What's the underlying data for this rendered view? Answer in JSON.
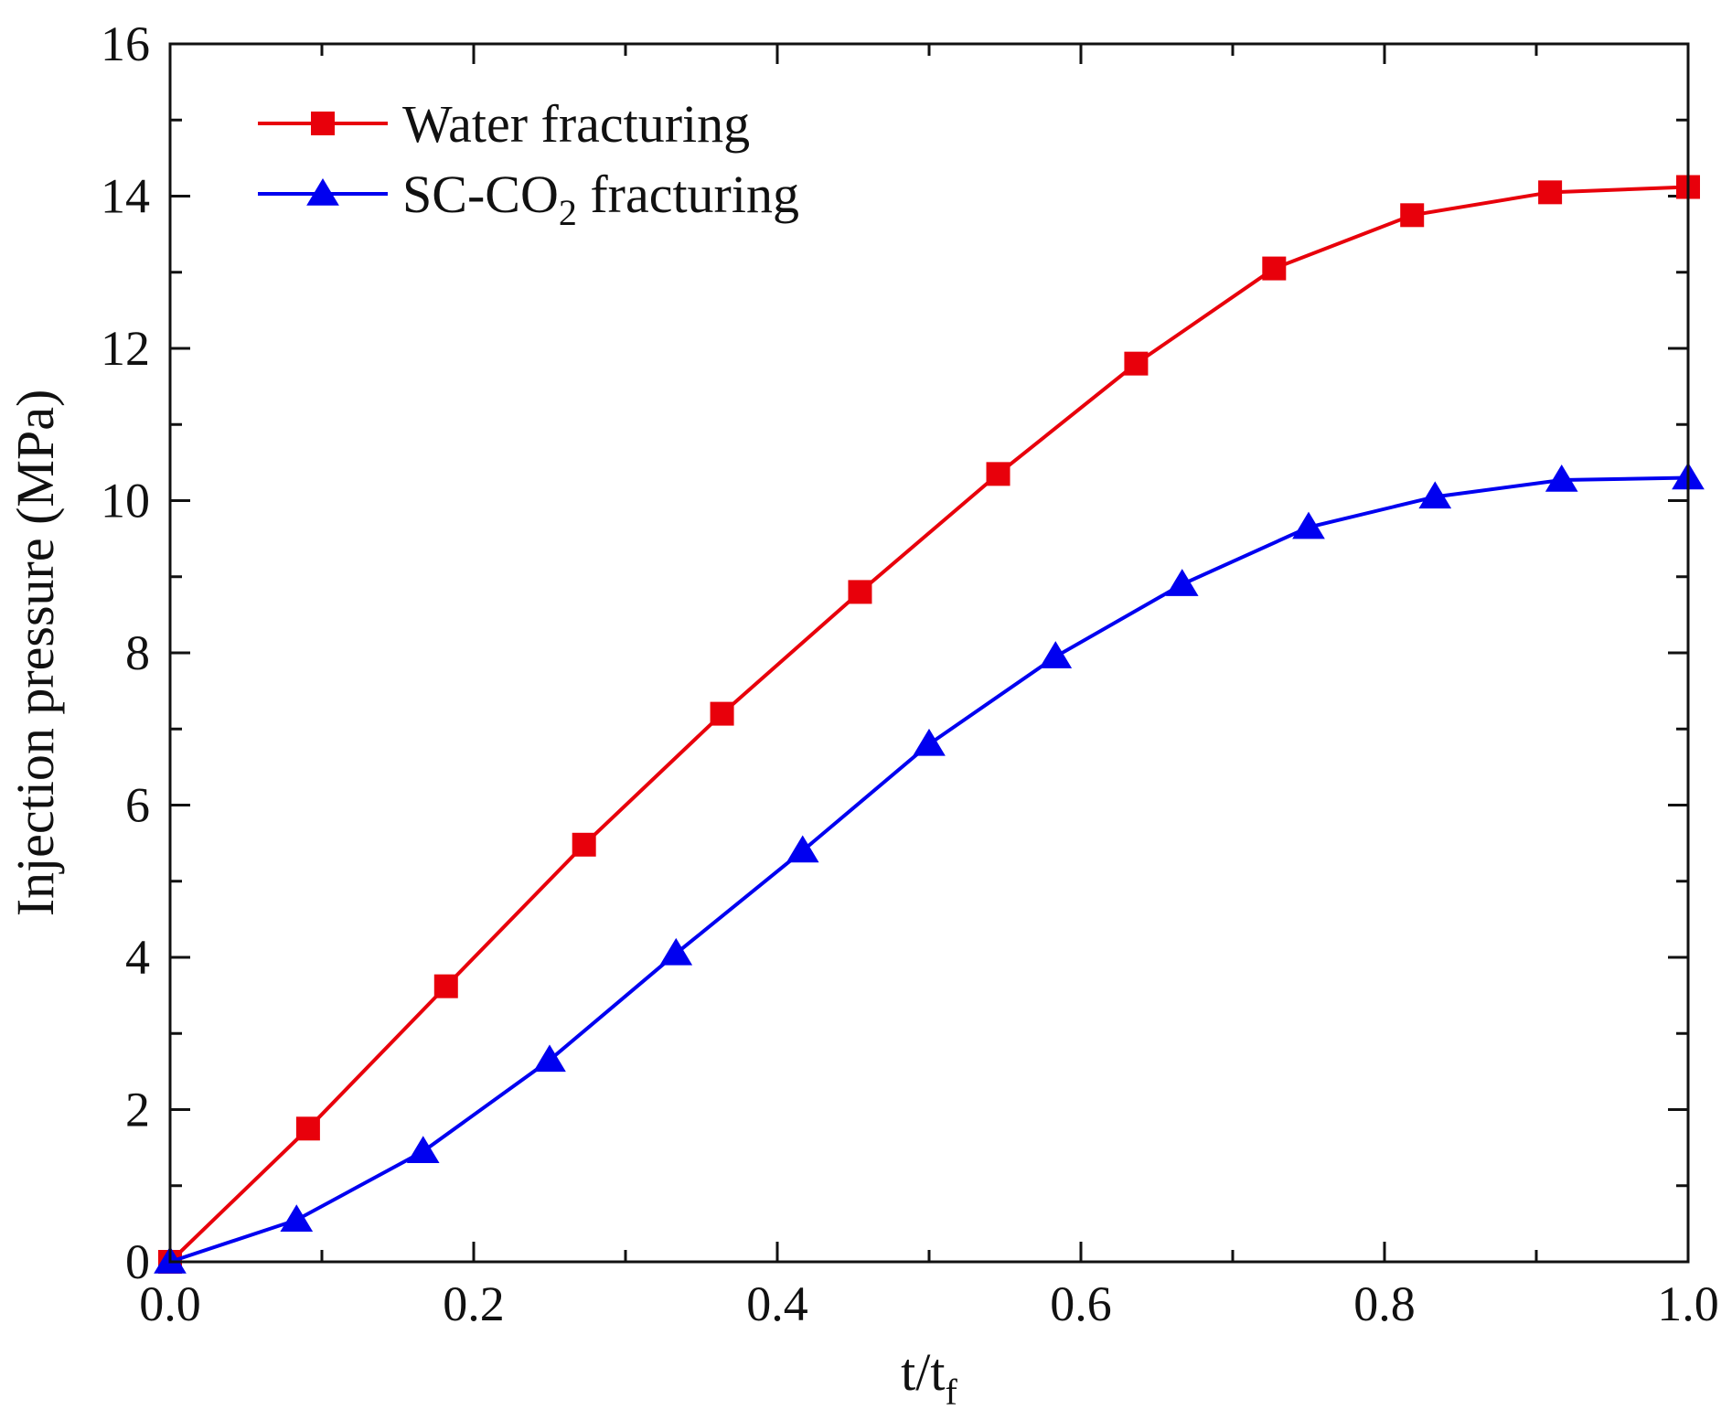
{
  "chart_data": {
    "type": "line",
    "title": "",
    "xlabel": "t/t",
    "xlabel_sub": "f",
    "ylabel": "Injection pressure (MPa)",
    "xlim": [
      0.0,
      1.0
    ],
    "ylim": [
      0,
      16
    ],
    "xticks": [
      "0.0",
      "0.2",
      "0.4",
      "0.6",
      "0.8",
      "1.0"
    ],
    "yticks": [
      "0",
      "2",
      "4",
      "6",
      "8",
      "10",
      "12",
      "14",
      "16"
    ],
    "legend_position": "top-left",
    "series": [
      {
        "name": "Water fracturing",
        "color": "#e8000b",
        "marker": "square",
        "x": [
          0.0,
          0.0909,
          0.1818,
          0.2727,
          0.3636,
          0.4545,
          0.5455,
          0.6364,
          0.7273,
          0.8182,
          0.9091,
          1.0
        ],
        "y": [
          0.0,
          1.75,
          3.62,
          5.48,
          7.2,
          8.8,
          10.35,
          11.8,
          13.05,
          13.75,
          14.05,
          14.12
        ]
      },
      {
        "name": "SC-CO",
        "name_sub": "2",
        "name_tail": " fracturing",
        "color": "#0000f0",
        "marker": "triangle",
        "x": [
          0.0,
          0.0833,
          0.1667,
          0.25,
          0.3333,
          0.4167,
          0.5,
          0.5833,
          0.6667,
          0.75,
          0.8333,
          0.9167,
          1.0
        ],
        "y": [
          0.0,
          0.55,
          1.45,
          2.65,
          4.05,
          5.4,
          6.8,
          7.95,
          8.9,
          9.65,
          10.05,
          10.27,
          10.3
        ]
      }
    ]
  }
}
